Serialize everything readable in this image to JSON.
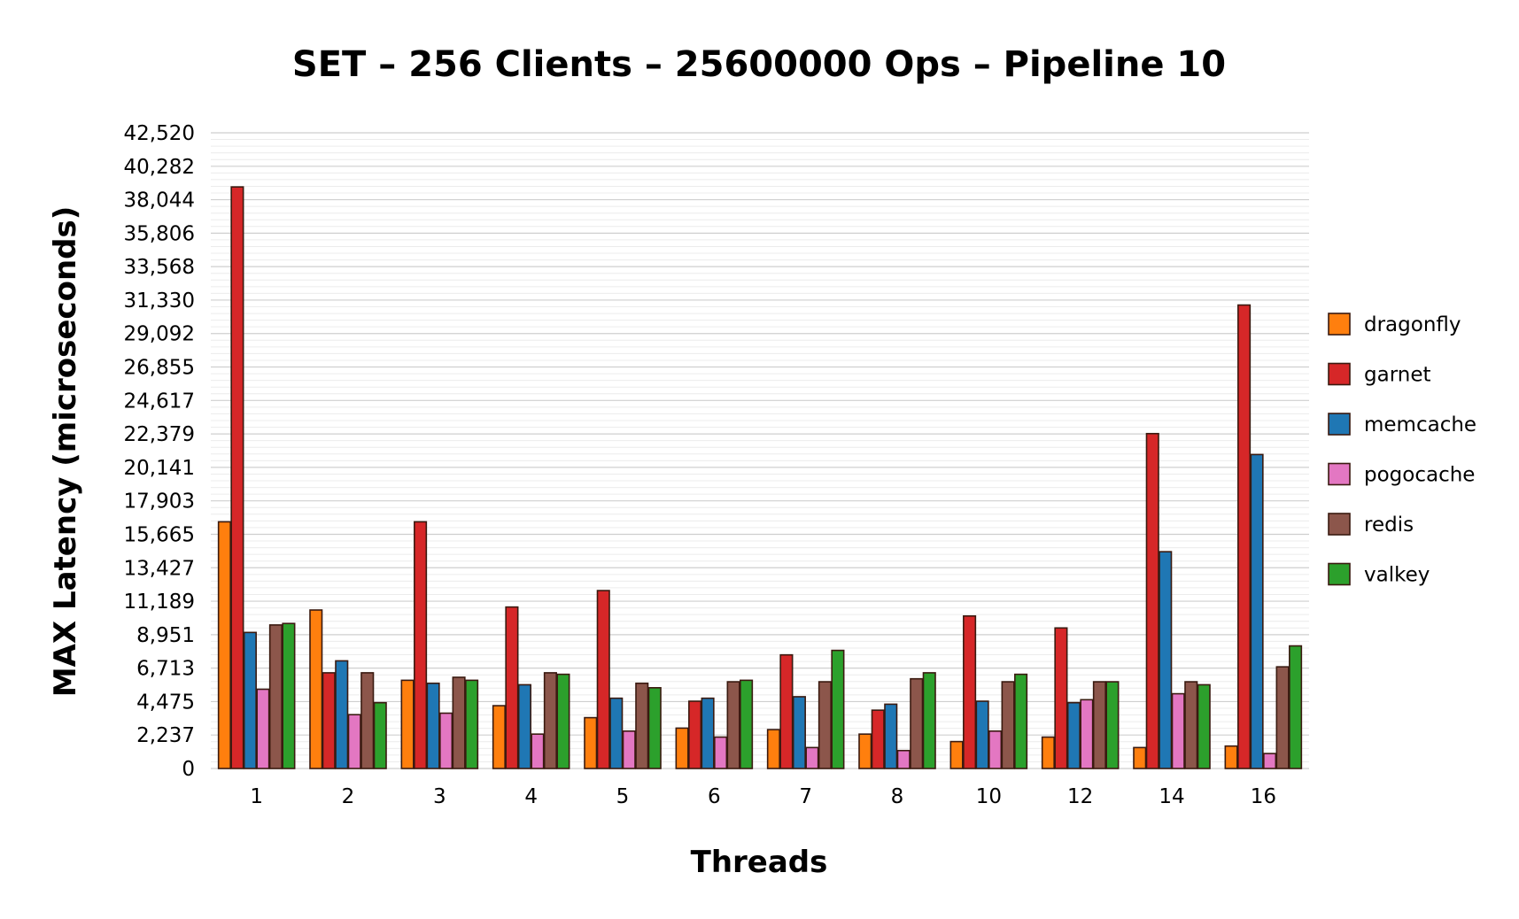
{
  "chart_data": {
    "type": "bar",
    "title": "SET – 256 Clients – 25600000 Ops – Pipeline 10",
    "xlabel": "Threads",
    "ylabel": "MAX Latency (microseconds)",
    "categories": [
      "1",
      "2",
      "3",
      "4",
      "5",
      "6",
      "7",
      "8",
      "10",
      "12",
      "14",
      "16"
    ],
    "yticks": [
      "0",
      "2,237",
      "4,475",
      "6,713",
      "8,951",
      "11,189",
      "13,427",
      "15,665",
      "17,903",
      "20,141",
      "22,379",
      "24,617",
      "26,855",
      "29,092",
      "31,330",
      "33,568",
      "35,806",
      "38,044",
      "40,282",
      "42,520"
    ],
    "ylim": [
      0,
      42520
    ],
    "grid": true,
    "legend_position": "right",
    "series": [
      {
        "name": "dragonfly",
        "color": "#ff7f0e",
        "values": [
          16500,
          10600,
          5900,
          4200,
          3400,
          2700,
          2600,
          2300,
          1800,
          2100,
          1400,
          1500
        ]
      },
      {
        "name": "garnet",
        "color": "#d62728",
        "values": [
          38900,
          6400,
          16500,
          10800,
          11900,
          4500,
          7600,
          3900,
          10200,
          9400,
          22400,
          31000
        ]
      },
      {
        "name": "memcache",
        "color": "#1f77b4",
        "values": [
          9100,
          7200,
          5700,
          5600,
          4700,
          4700,
          4800,
          4300,
          4500,
          4400,
          14500,
          21000
        ]
      },
      {
        "name": "pogocache",
        "color": "#e377c2",
        "values": [
          5300,
          3600,
          3700,
          2300,
          2500,
          2100,
          1400,
          1200,
          2500,
          4600,
          5000,
          1000
        ]
      },
      {
        "name": "redis",
        "color": "#8c564b",
        "values": [
          9600,
          6400,
          6100,
          6400,
          5700,
          5800,
          5800,
          6000,
          5800,
          5800,
          5800,
          6800
        ]
      },
      {
        "name": "valkey",
        "color": "#2ca02c",
        "values": [
          9700,
          4400,
          5900,
          6300,
          5400,
          5900,
          7900,
          6400,
          6300,
          5800,
          5600,
          8200
        ]
      }
    ]
  }
}
